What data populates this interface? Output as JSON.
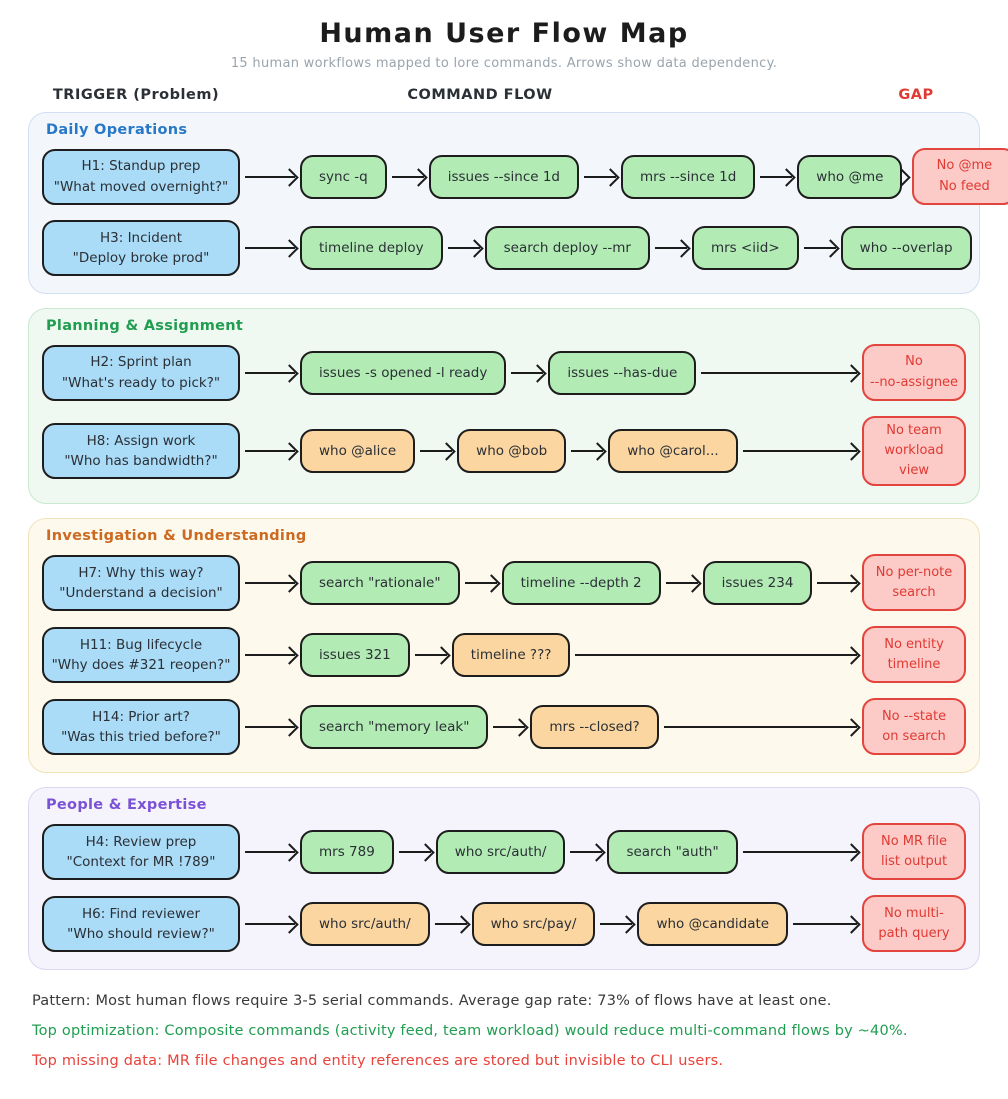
{
  "header": {
    "title": "Human User Flow Map",
    "subtitle": "15 human workflows mapped to lore commands. Arrows show data dependency.",
    "columns": {
      "trigger": "TRIGGER (Problem)",
      "command_flow": "COMMAND FLOW",
      "gap": "GAP"
    }
  },
  "palette": {
    "trigger-fill": "#aadcf7",
    "cmd-ok-fill": "#b2ecb4",
    "cmd-warn-fill": "#fbd6a0",
    "gap-fill": "#fccac7",
    "gap-border": "#e2453d",
    "gap-text": "#e03a33",
    "stroke": "#1d1d1d"
  },
  "sections": [
    {
      "label": "Daily Operations",
      "label_color": "#2878c8",
      "bg": "#f3f7fc",
      "border": "#d2def2",
      "rows": [
        {
          "trigger": {
            "title": "H1: Standup prep",
            "quote": "\"What moved overnight?\""
          },
          "commands": [
            {
              "label": "sync -q",
              "type": "ok"
            },
            {
              "label": "issues --since 1d",
              "type": "ok"
            },
            {
              "label": "mrs --since 1d",
              "type": "ok"
            },
            {
              "label": "who @me",
              "type": "ok"
            }
          ],
          "gap": [
            "No @me",
            "No feed"
          ]
        },
        {
          "trigger": {
            "title": "H3: Incident",
            "quote": "\"Deploy broke prod\""
          },
          "commands": [
            {
              "label": "timeline deploy",
              "type": "ok"
            },
            {
              "label": "search deploy --mr",
              "type": "ok"
            },
            {
              "label": "mrs <iid>",
              "type": "ok"
            },
            {
              "label": "who --overlap",
              "type": "ok"
            }
          ],
          "gap": null
        }
      ]
    },
    {
      "label": "Planning & Assignment",
      "label_color": "#1f9d50",
      "bg": "#eff9f1",
      "border": "#c9e9d1",
      "rows": [
        {
          "trigger": {
            "title": "H2: Sprint plan",
            "quote": "\"What's ready to pick?\""
          },
          "commands": [
            {
              "label": "issues -s opened -l ready",
              "type": "ok"
            },
            {
              "label": "issues --has-due",
              "type": "ok"
            }
          ],
          "gap": [
            "No",
            "--no-assignee"
          ]
        },
        {
          "trigger": {
            "title": "H8: Assign work",
            "quote": "\"Who has bandwidth?\""
          },
          "commands": [
            {
              "label": "who @alice",
              "type": "warn"
            },
            {
              "label": "who @bob",
              "type": "warn"
            },
            {
              "label": "who @carol...",
              "type": "warn"
            }
          ],
          "gap": [
            "No team",
            "workload view"
          ]
        }
      ]
    },
    {
      "label": "Investigation & Understanding",
      "label_color": "#cc6a21",
      "bg": "#fdf9ec",
      "border": "#f1e2ba",
      "rows": [
        {
          "trigger": {
            "title": "H7: Why this way?",
            "quote": "\"Understand a decision\""
          },
          "commands": [
            {
              "label": "search \"rationale\"",
              "type": "ok"
            },
            {
              "label": "timeline --depth 2",
              "type": "ok"
            },
            {
              "label": "issues 234",
              "type": "ok"
            }
          ],
          "gap": [
            "No per-note",
            "search"
          ]
        },
        {
          "trigger": {
            "title": "H11: Bug lifecycle",
            "quote": "\"Why does #321 reopen?\""
          },
          "commands": [
            {
              "label": "issues 321",
              "type": "ok"
            },
            {
              "label": "timeline ???",
              "type": "warn"
            }
          ],
          "gap": [
            "No entity",
            "timeline"
          ]
        },
        {
          "trigger": {
            "title": "H14: Prior art?",
            "quote": "\"Was this tried before?\""
          },
          "commands": [
            {
              "label": "search \"memory leak\"",
              "type": "ok"
            },
            {
              "label": "mrs --closed?",
              "type": "warn"
            }
          ],
          "gap": [
            "No --state",
            "on search"
          ]
        }
      ]
    },
    {
      "label": "People & Expertise",
      "label_color": "#7a52d6",
      "bg": "#f5f3fc",
      "border": "#ded5f2",
      "rows": [
        {
          "trigger": {
            "title": "H4: Review prep",
            "quote": "\"Context for MR !789\""
          },
          "commands": [
            {
              "label": "mrs 789",
              "type": "ok"
            },
            {
              "label": "who src/auth/",
              "type": "ok"
            },
            {
              "label": "search \"auth\"",
              "type": "ok"
            }
          ],
          "gap": [
            "No MR file",
            "list output"
          ]
        },
        {
          "trigger": {
            "title": "H6: Find reviewer",
            "quote": "\"Who should review?\""
          },
          "commands": [
            {
              "label": "who src/auth/",
              "type": "warn"
            },
            {
              "label": "who src/pay/",
              "type": "warn"
            },
            {
              "label": "who @candidate",
              "type": "warn"
            }
          ],
          "gap": [
            "No multi-",
            "path query"
          ]
        }
      ]
    }
  ],
  "footer": {
    "lines": [
      {
        "text": "Pattern: Most human flows require 3-5 serial commands. Average gap rate: 73% of flows have at least one.",
        "color": "#3a3a3a"
      },
      {
        "text": "Top optimization: Composite commands (activity feed, team workload) would reduce multi-command flows by ~40%.",
        "color": "#1f9d50"
      },
      {
        "text": "Top missing data: MR file changes and entity references are stored but invisible to CLI users.",
        "color": "#e8423a"
      }
    ]
  }
}
